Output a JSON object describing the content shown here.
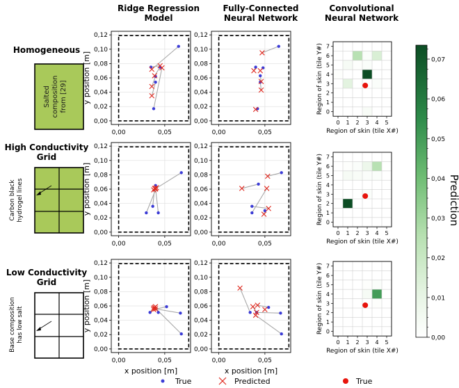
{
  "columns": [
    {
      "line1": "Ridge Regression",
      "line2": "Model"
    },
    {
      "line1": "Fully-Connected",
      "line2": "Neural Network"
    },
    {
      "line1": "Convolutional",
      "line2": "Neural Network"
    }
  ],
  "rows": [
    {
      "line1": "Homogeneous",
      "line2": "",
      "sample_lines": [
        "Salted",
        "composition",
        "from [29]"
      ],
      "sample_fill": "#a9c95a",
      "grid": false
    },
    {
      "line1": "High Conductivity",
      "line2": "Grid",
      "sample_lines": [
        "Carbon black",
        "hydrogel lines"
      ],
      "sample_fill": "#a9c95a",
      "grid": true
    },
    {
      "line1": "Low Conductivity",
      "line2": "Grid",
      "sample_lines": [
        "Base composition",
        "has low salt"
      ],
      "sample_fill": "#ffffff",
      "grid": true
    }
  ],
  "colors": {
    "true": "#3b3bd6",
    "predicted": "#e0281e",
    "heat_true": "#e8140c",
    "link": "#a8a8a8",
    "cmap_low": "#ffffff",
    "cmap_high": "#0c4d24"
  },
  "legend": {
    "true_label": "True",
    "predicted_label": "Predicted",
    "heat_true_label": "True"
  },
  "colorbar": {
    "label": "Prediction",
    "ticks": [
      "0,00",
      "0,01",
      "0,02",
      "0,03",
      "0,04",
      "0,05",
      "0,06",
      "0,07"
    ],
    "max": 0.0735
  },
  "chart_data": {
    "scatter": {
      "type": "scatter",
      "xlabel": "x position [m]",
      "ylabel": "y position [m]",
      "xticks": [
        "0,00",
        "0,05"
      ],
      "yticks": [
        "0,00",
        "0,02",
        "0,04",
        "0,06",
        "0,08",
        "0,10",
        "0,12"
      ],
      "xlim": [
        -0.008,
        0.078
      ],
      "ylim": [
        -0.005,
        0.125
      ],
      "boundary": [
        0.0,
        0.0,
        0.076,
        0.119
      ],
      "panels": [
        {
          "row": 0,
          "col": 0,
          "true": [
            [
              0.065,
              0.104
            ],
            [
              0.035,
              0.075
            ],
            [
              0.045,
              0.075
            ],
            [
              0.04,
              0.062
            ],
            [
              0.04,
              0.054
            ],
            [
              0.038,
              0.017
            ]
          ],
          "pred": [
            [
              0.036,
              0.072
            ],
            [
              0.045,
              0.077
            ],
            [
              0.039,
              0.063
            ],
            [
              0.036,
              0.048
            ],
            [
              0.036,
              0.035
            ],
            [
              0.047,
              0.074
            ]
          ]
        },
        {
          "row": 0,
          "col": 1,
          "true": [
            [
              0.065,
              0.104
            ],
            [
              0.04,
              0.075
            ],
            [
              0.048,
              0.074
            ],
            [
              0.045,
              0.063
            ],
            [
              0.045,
              0.054
            ],
            [
              0.042,
              0.017
            ]
          ],
          "pred": [
            [
              0.047,
              0.095
            ],
            [
              0.038,
              0.07
            ],
            [
              0.045,
              0.07
            ],
            [
              0.046,
              0.055
            ],
            [
              0.046,
              0.043
            ],
            [
              0.04,
              0.016
            ]
          ]
        },
        {
          "row": 1,
          "col": 0,
          "true": [
            [
              0.068,
              0.083
            ],
            [
              0.04,
              0.065
            ],
            [
              0.03,
              0.027
            ],
            [
              0.037,
              0.036
            ],
            [
              0.043,
              0.027
            ]
          ],
          "pred": [
            [
              0.038,
              0.059
            ],
            [
              0.04,
              0.06
            ],
            [
              0.041,
              0.062
            ],
            [
              0.039,
              0.061
            ],
            [
              0.04,
              0.061
            ]
          ]
        },
        {
          "row": 1,
          "col": 1,
          "true": [
            [
              0.068,
              0.083
            ],
            [
              0.043,
              0.067
            ],
            [
              0.036,
              0.027
            ],
            [
              0.036,
              0.036
            ],
            [
              0.05,
              0.03
            ]
          ],
          "pred": [
            [
              0.053,
              0.078
            ],
            [
              0.025,
              0.061
            ],
            [
              0.052,
              0.061
            ],
            [
              0.054,
              0.033
            ],
            [
              0.049,
              0.025
            ]
          ]
        },
        {
          "row": 2,
          "col": 0,
          "true": [
            [
              0.034,
              0.051
            ],
            [
              0.043,
              0.051
            ],
            [
              0.052,
              0.059
            ],
            [
              0.067,
              0.05
            ],
            [
              0.068,
              0.021
            ]
          ],
          "pred": [
            [
              0.038,
              0.057
            ],
            [
              0.04,
              0.059
            ],
            [
              0.038,
              0.055
            ],
            [
              0.04,
              0.056
            ],
            [
              0.039,
              0.058
            ]
          ]
        },
        {
          "row": 2,
          "col": 1,
          "true": [
            [
              0.034,
              0.051
            ],
            [
              0.041,
              0.051
            ],
            [
              0.054,
              0.058
            ],
            [
              0.067,
              0.05
            ],
            [
              0.068,
              0.021
            ]
          ],
          "pred": [
            [
              0.023,
              0.085
            ],
            [
              0.037,
              0.059
            ],
            [
              0.042,
              0.061
            ],
            [
              0.041,
              0.051
            ],
            [
              0.04,
              0.047
            ],
            [
              0.05,
              0.055
            ]
          ]
        }
      ]
    },
    "heatmaps": {
      "type": "heatmap",
      "xlabel": "Region of skin (tile X#)",
      "ylabel": "Region of skin (tile Y#)",
      "xticks": [
        "0",
        "1",
        "2",
        "3",
        "4",
        "5"
      ],
      "yticks": [
        "0",
        "1",
        "2",
        "3",
        "4",
        "5",
        "6",
        "7"
      ],
      "ncols": 6,
      "nrows": 8,
      "panels": [
        {
          "row": 0,
          "true": [
            3.3,
            3.3
          ],
          "cells": [
            {
              "x": 3,
              "y": 4,
              "v": 0.0735
            },
            {
              "x": 2,
              "y": 6,
              "v": 0.025
            },
            {
              "x": 4,
              "y": 6,
              "v": 0.015
            },
            {
              "x": 1,
              "y": 3,
              "v": 0.012
            },
            {
              "x": 1,
              "y": 5,
              "v": 0.004
            },
            {
              "x": 3,
              "y": 0,
              "v": 0.003
            },
            {
              "x": 3,
              "y": 5,
              "v": 0.002
            },
            {
              "x": 4,
              "y": 3,
              "v": 0.002
            },
            {
              "x": 3,
              "y": 6,
              "v": 0.002
            },
            {
              "x": 0,
              "y": 4,
              "v": 0.001
            },
            {
              "x": 2,
              "y": 5,
              "v": 0.001
            }
          ]
        },
        {
          "row": 1,
          "true": [
            3.3,
            3.3
          ],
          "cells": [
            {
              "x": 1,
              "y": 2,
              "v": 0.0735
            },
            {
              "x": 4,
              "y": 6,
              "v": 0.025
            },
            {
              "x": 3,
              "y": 6,
              "v": 0.008
            },
            {
              "x": 1,
              "y": 5,
              "v": 0.004
            },
            {
              "x": 2,
              "y": 5,
              "v": 0.003
            },
            {
              "x": 4,
              "y": 5,
              "v": 0.002
            },
            {
              "x": 2,
              "y": 6,
              "v": 0.002
            },
            {
              "x": 3,
              "y": 5,
              "v": 0.002
            },
            {
              "x": 3,
              "y": 3,
              "v": 0.002
            },
            {
              "x": 1,
              "y": 6,
              "v": 0.001
            }
          ]
        },
        {
          "row": 2,
          "true": [
            3.3,
            3.3
          ],
          "cells": [
            {
              "x": 4,
              "y": 4,
              "v": 0.05
            },
            {
              "x": 3,
              "y": 4,
              "v": 0.004
            },
            {
              "x": 4,
              "y": 5,
              "v": 0.002
            },
            {
              "x": 3,
              "y": 5,
              "v": 0.001
            },
            {
              "x": 4,
              "y": 3,
              "v": 0.001
            }
          ]
        }
      ]
    }
  }
}
